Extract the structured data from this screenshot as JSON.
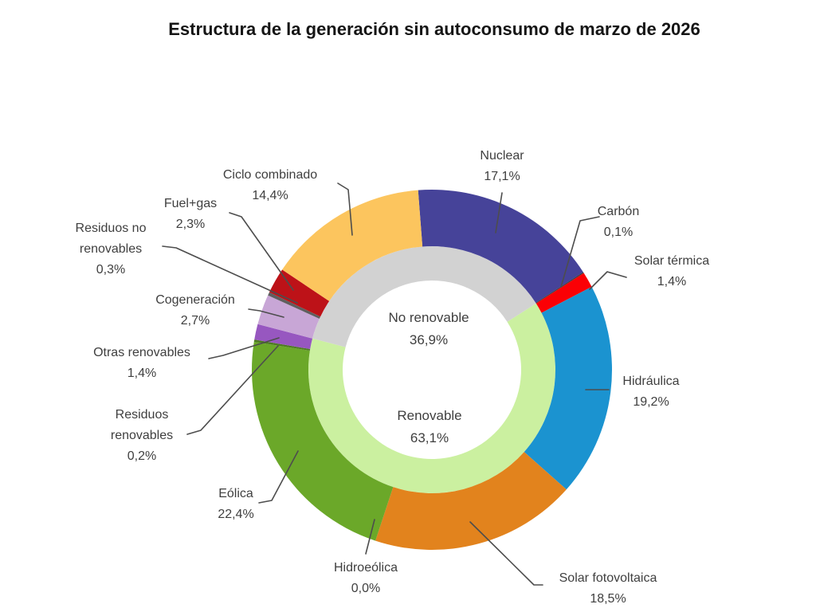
{
  "chart_data": {
    "type": "donut",
    "title": "Estructura de la generación sin autoconsumo de marzo de 2026",
    "units": "%",
    "start_angle_deg": -4.4,
    "legend_position": "none",
    "outer_ring": [
      {
        "name": "Nuclear",
        "value": 17.1,
        "display": "17,1%",
        "color": "#464399"
      },
      {
        "name": "Carbón",
        "value": 0.1,
        "display": "0,1%",
        "color": "#3b3b3b"
      },
      {
        "name": "Solar térmica",
        "value": 1.4,
        "display": "1,4%",
        "color": "#fb0005"
      },
      {
        "name": "Hidráulica",
        "value": 19.2,
        "display": "19,2%",
        "color": "#1b93d0"
      },
      {
        "name": "Solar fotovoltaica",
        "value": 18.5,
        "display": "18,5%",
        "color": "#e2831d"
      },
      {
        "name": "Hidroeólica",
        "value": 0.0,
        "display": "0,0%",
        "color": "#00aecb"
      },
      {
        "name": "Eólica",
        "value": 22.4,
        "display": "22,4%",
        "color": "#6ba829"
      },
      {
        "name": "Residuos renovables",
        "value": 0.2,
        "display": "0,2%",
        "color": "#4e7b22"
      },
      {
        "name": "Otras renovables",
        "value": 1.4,
        "display": "1,4%",
        "color": "#9757c0"
      },
      {
        "name": "Cogeneración",
        "value": 2.7,
        "display": "2,7%",
        "color": "#c8a6d6"
      },
      {
        "name": "Residuos no renovables",
        "value": 0.3,
        "display": "0,3%",
        "color": "#5f5f5f"
      },
      {
        "name": "Fuel+gas",
        "value": 2.3,
        "display": "2,3%",
        "color": "#bd1218"
      },
      {
        "name": "Ciclo combinado",
        "value": 14.4,
        "display": "14,4%",
        "color": "#fcc55e"
      }
    ],
    "inner_ring": [
      {
        "name": "Renovable",
        "value": 63.1,
        "display": "63,1%",
        "color": "#cbf0a0",
        "offset_pct": 17.2
      },
      {
        "name": "No renovable",
        "value": 36.9,
        "display": "36,9%",
        "color": "#d2d2d2",
        "offset_pct": 80.3
      }
    ]
  }
}
